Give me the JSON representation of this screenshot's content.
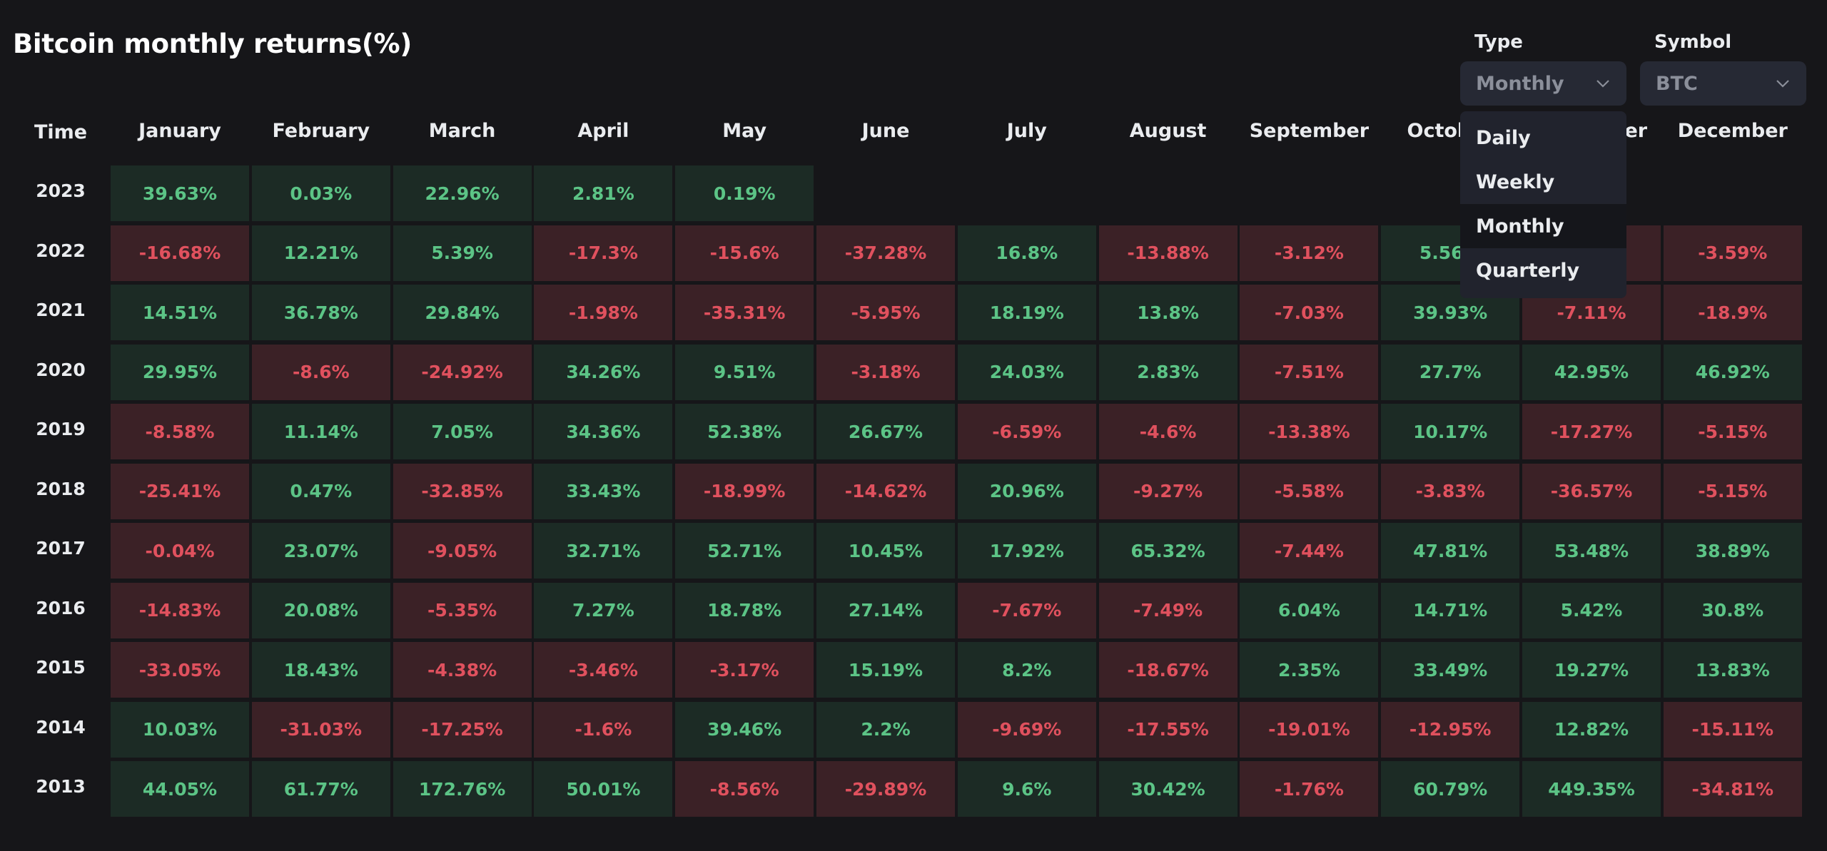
{
  "title": "Bitcoin monthly returns(%)",
  "controls": {
    "type_label": "Type",
    "type_value": "Monthly",
    "symbol_label": "Symbol",
    "symbol_value": "BTC",
    "type_options": [
      "Daily",
      "Weekly",
      "Monthly",
      "Quarterly"
    ],
    "type_highlighted": "Monthly"
  },
  "colors": {
    "background": "#161619",
    "positive_bg": "#1c2b25",
    "positive_text": "#5cc486",
    "negative_bg": "#3b2126",
    "negative_text": "#e0515e",
    "dropdown_bg": "#21232d"
  },
  "icons": {
    "type_chevron": "chevron-down-icon",
    "symbol_chevron": "chevron-down-icon"
  },
  "table": {
    "time_header": "Time",
    "months": [
      "January",
      "February",
      "March",
      "April",
      "May",
      "June",
      "July",
      "August",
      "September",
      "October",
      "November",
      "December"
    ],
    "rows": [
      {
        "year": "2023",
        "values": [
          "39.63%",
          "0.03%",
          "22.96%",
          "2.81%",
          "0.19%",
          "",
          "",
          "",
          "",
          "",
          "",
          ""
        ]
      },
      {
        "year": "2022",
        "values": [
          "-16.68%",
          "12.21%",
          "5.39%",
          "-17.3%",
          "-15.6%",
          "-37.28%",
          "16.8%",
          "-13.88%",
          "-3.12%",
          "5.56%",
          "",
          "-3.59%"
        ]
      },
      {
        "year": "2021",
        "values": [
          "14.51%",
          "36.78%",
          "29.84%",
          "-1.98%",
          "-35.31%",
          "-5.95%",
          "18.19%",
          "13.8%",
          "-7.03%",
          "39.93%",
          "-7.11%",
          "-18.9%"
        ]
      },
      {
        "year": "2020",
        "values": [
          "29.95%",
          "-8.6%",
          "-24.92%",
          "34.26%",
          "9.51%",
          "-3.18%",
          "24.03%",
          "2.83%",
          "-7.51%",
          "27.7%",
          "42.95%",
          "46.92%"
        ]
      },
      {
        "year": "2019",
        "values": [
          "-8.58%",
          "11.14%",
          "7.05%",
          "34.36%",
          "52.38%",
          "26.67%",
          "-6.59%",
          "-4.6%",
          "-13.38%",
          "10.17%",
          "-17.27%",
          "-5.15%"
        ]
      },
      {
        "year": "2018",
        "values": [
          "-25.41%",
          "0.47%",
          "-32.85%",
          "33.43%",
          "-18.99%",
          "-14.62%",
          "20.96%",
          "-9.27%",
          "-5.58%",
          "-3.83%",
          "-36.57%",
          "-5.15%"
        ]
      },
      {
        "year": "2017",
        "values": [
          "-0.04%",
          "23.07%",
          "-9.05%",
          "32.71%",
          "52.71%",
          "10.45%",
          "17.92%",
          "65.32%",
          "-7.44%",
          "47.81%",
          "53.48%",
          "38.89%"
        ]
      },
      {
        "year": "2016",
        "values": [
          "-14.83%",
          "20.08%",
          "-5.35%",
          "7.27%",
          "18.78%",
          "27.14%",
          "-7.67%",
          "-7.49%",
          "6.04%",
          "14.71%",
          "5.42%",
          "30.8%"
        ]
      },
      {
        "year": "2015",
        "values": [
          "-33.05%",
          "18.43%",
          "-4.38%",
          "-3.46%",
          "-3.17%",
          "15.19%",
          "8.2%",
          "-18.67%",
          "2.35%",
          "33.49%",
          "19.27%",
          "13.83%"
        ]
      },
      {
        "year": "2014",
        "values": [
          "10.03%",
          "-31.03%",
          "-17.25%",
          "-1.6%",
          "39.46%",
          "2.2%",
          "-9.69%",
          "-17.55%",
          "-19.01%",
          "-12.95%",
          "12.82%",
          "-15.11%"
        ]
      },
      {
        "year": "2013",
        "values": [
          "44.05%",
          "61.77%",
          "172.76%",
          "50.01%",
          "-8.56%",
          "-29.89%",
          "9.6%",
          "30.42%",
          "-1.76%",
          "60.79%",
          "449.35%",
          "-34.81%"
        ]
      }
    ],
    "row_11_november_2022_sign": "negative"
  }
}
